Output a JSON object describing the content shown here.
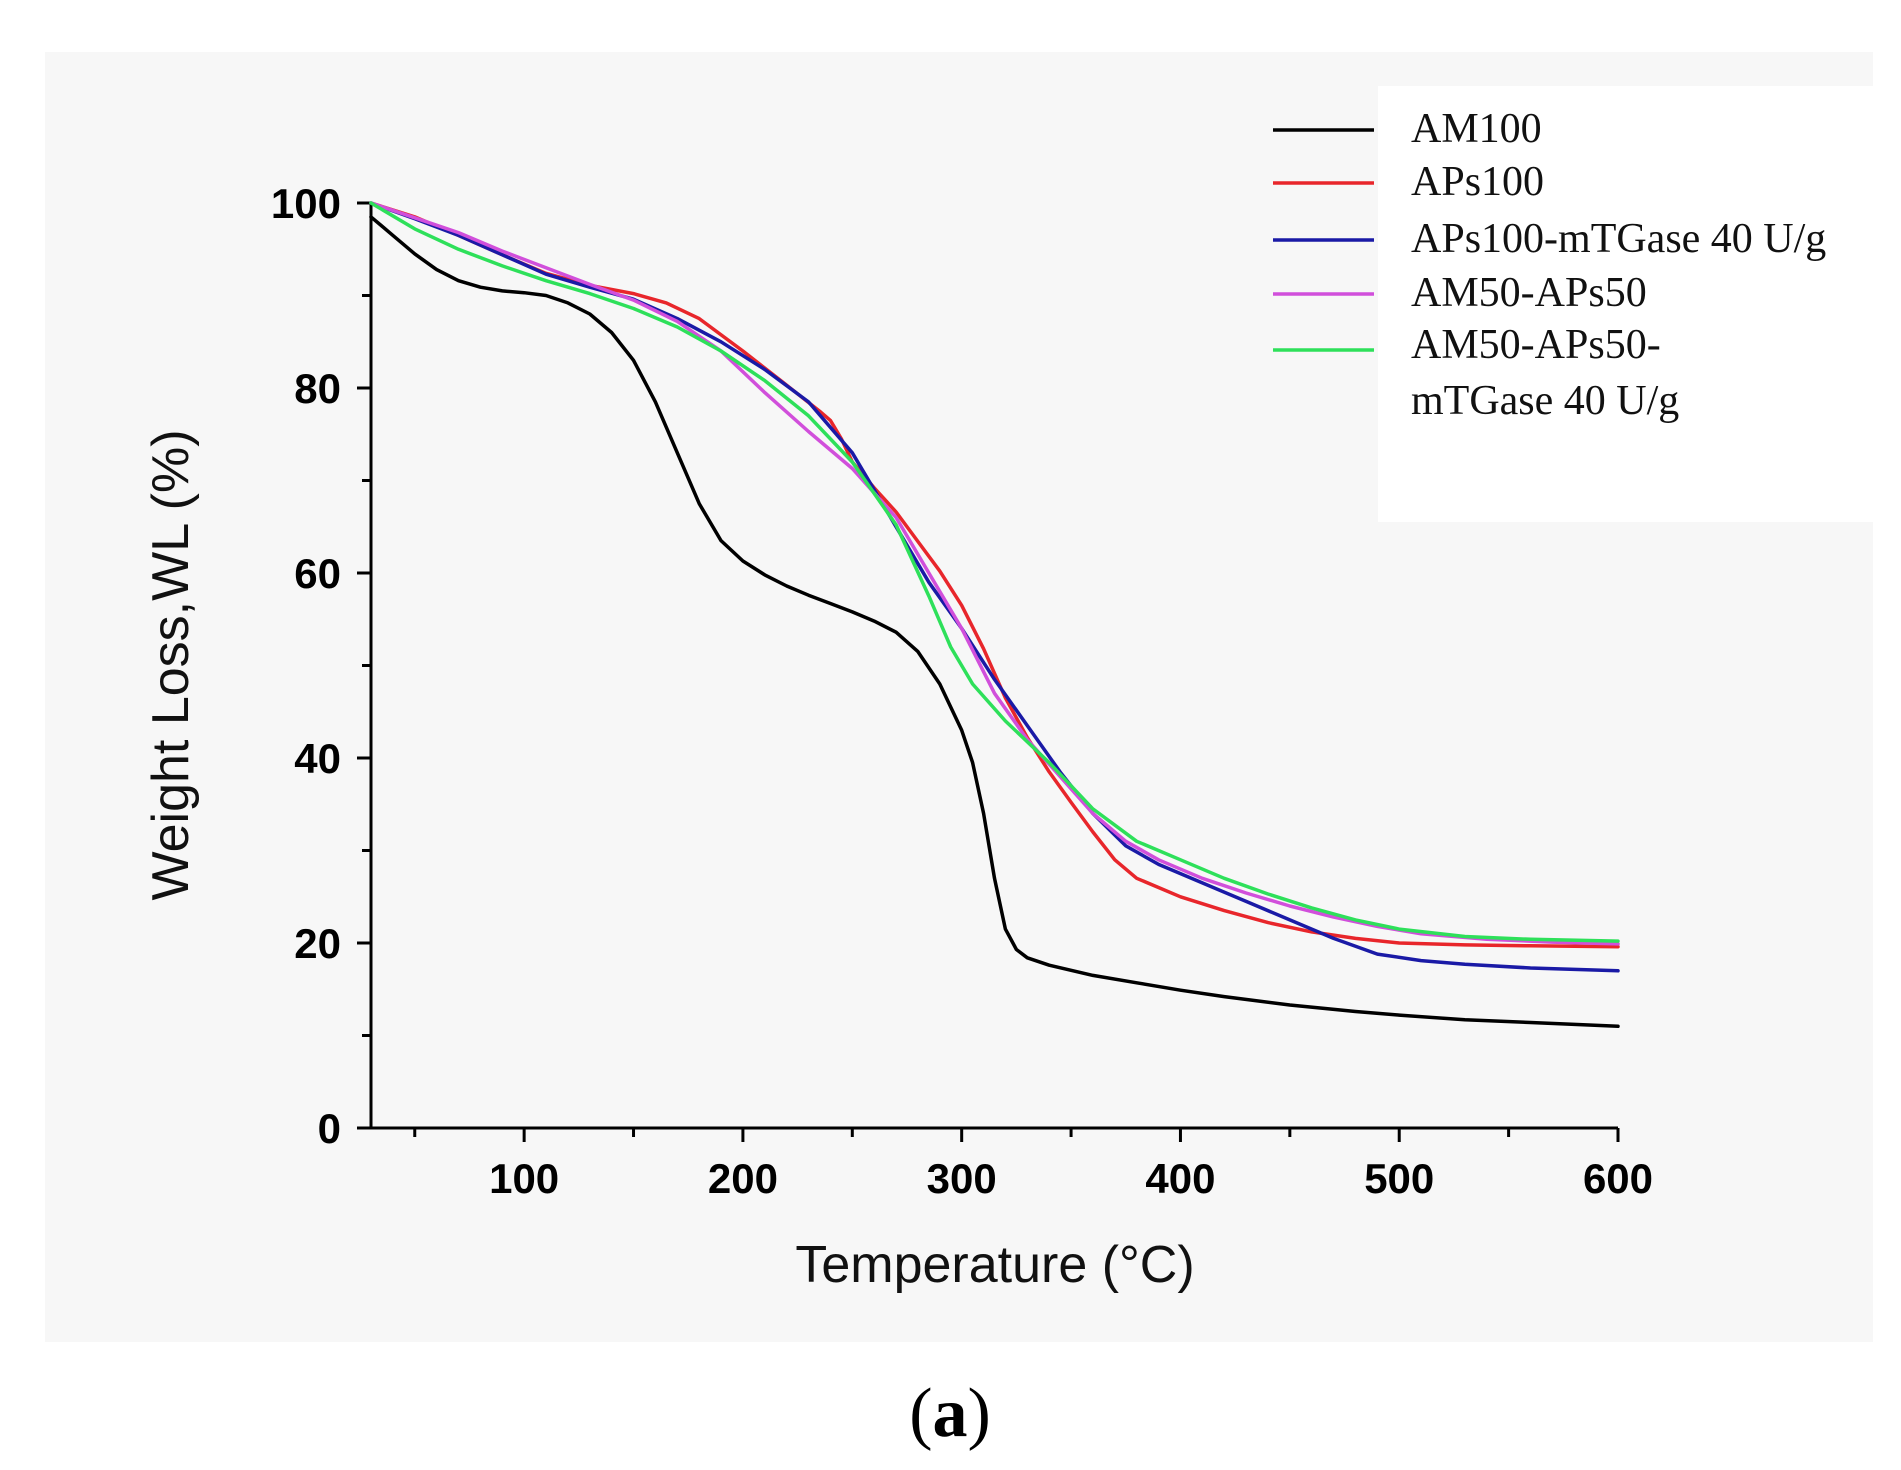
{
  "chart_data": {
    "type": "line",
    "title": "",
    "xlabel": "Temperature (°C)",
    "ylabel": "Weight Loss,WL (%)",
    "xlim": [
      30,
      600
    ],
    "ylim": [
      0,
      105
    ],
    "xticks": [
      100,
      200,
      300,
      400,
      500,
      600
    ],
    "xticks_minor": [
      50,
      150,
      250,
      350,
      450,
      550
    ],
    "yticks": [
      0,
      20,
      40,
      60,
      80,
      100
    ],
    "yticks_minor": [
      10,
      30,
      50,
      70,
      90
    ],
    "legend_position": "top-right",
    "series": [
      {
        "name": "AM100",
        "color": "#000000",
        "points": [
          [
            30,
            98.5
          ],
          [
            40,
            96.5
          ],
          [
            50,
            94.5
          ],
          [
            60,
            92.8
          ],
          [
            70,
            91.6
          ],
          [
            80,
            90.9
          ],
          [
            90,
            90.5
          ],
          [
            100,
            90.3
          ],
          [
            110,
            90
          ],
          [
            120,
            89.2
          ],
          [
            130,
            88
          ],
          [
            140,
            86
          ],
          [
            150,
            83
          ],
          [
            160,
            78.5
          ],
          [
            170,
            73
          ],
          [
            180,
            67.5
          ],
          [
            190,
            63.5
          ],
          [
            200,
            61.3
          ],
          [
            210,
            59.8
          ],
          [
            220,
            58.6
          ],
          [
            230,
            57.6
          ],
          [
            240,
            56.7
          ],
          [
            250,
            55.8
          ],
          [
            260,
            54.8
          ],
          [
            270,
            53.6
          ],
          [
            280,
            51.5
          ],
          [
            290,
            48
          ],
          [
            300,
            43
          ],
          [
            305,
            39.5
          ],
          [
            310,
            34
          ],
          [
            315,
            27
          ],
          [
            320,
            21.5
          ],
          [
            325,
            19.3
          ],
          [
            330,
            18.4
          ],
          [
            340,
            17.6
          ],
          [
            360,
            16.5
          ],
          [
            380,
            15.7
          ],
          [
            400,
            14.9
          ],
          [
            420,
            14.2
          ],
          [
            450,
            13.3
          ],
          [
            480,
            12.6
          ],
          [
            500,
            12.2
          ],
          [
            530,
            11.7
          ],
          [
            560,
            11.4
          ],
          [
            600,
            11
          ]
        ]
      },
      {
        "name": "APs100",
        "color": "#e8262b",
        "points": [
          [
            30,
            100
          ],
          [
            50,
            98.5
          ],
          [
            70,
            96.5
          ],
          [
            90,
            94.4
          ],
          [
            110,
            92.4
          ],
          [
            130,
            91.1
          ],
          [
            150,
            90.2
          ],
          [
            165,
            89.2
          ],
          [
            180,
            87.5
          ],
          [
            200,
            84
          ],
          [
            220,
            80.3
          ],
          [
            235,
            77.5
          ],
          [
            240,
            76.5
          ],
          [
            245,
            74.5
          ],
          [
            250,
            72
          ],
          [
            260,
            69.2
          ],
          [
            270,
            66.6
          ],
          [
            280,
            63.4
          ],
          [
            290,
            60.2
          ],
          [
            300,
            56.5
          ],
          [
            310,
            51.8
          ],
          [
            320,
            46.5
          ],
          [
            330,
            42.2
          ],
          [
            340,
            38.5
          ],
          [
            350,
            35.2
          ],
          [
            360,
            32
          ],
          [
            370,
            29
          ],
          [
            380,
            27
          ],
          [
            400,
            25
          ],
          [
            420,
            23.5
          ],
          [
            440,
            22.2
          ],
          [
            460,
            21.2
          ],
          [
            480,
            20.5
          ],
          [
            500,
            20
          ],
          [
            530,
            19.8
          ],
          [
            560,
            19.7
          ],
          [
            600,
            19.6
          ]
        ]
      },
      {
        "name": "APs100-mTGase 40 U/g",
        "color": "#1a1aa6",
        "points": [
          [
            30,
            100
          ],
          [
            50,
            98.3
          ],
          [
            70,
            96.5
          ],
          [
            90,
            94.4
          ],
          [
            110,
            92.3
          ],
          [
            130,
            90.9
          ],
          [
            150,
            89.6
          ],
          [
            170,
            87.5
          ],
          [
            190,
            85
          ],
          [
            210,
            82
          ],
          [
            230,
            78.5
          ],
          [
            250,
            73
          ],
          [
            270,
            65
          ],
          [
            285,
            59
          ],
          [
            300,
            54
          ],
          [
            315,
            48.5
          ],
          [
            330,
            43.5
          ],
          [
            345,
            38.5
          ],
          [
            360,
            34
          ],
          [
            375,
            30.5
          ],
          [
            390,
            28.5
          ],
          [
            410,
            26.5
          ],
          [
            430,
            24.5
          ],
          [
            450,
            22.5
          ],
          [
            470,
            20.5
          ],
          [
            490,
            18.8
          ],
          [
            510,
            18.1
          ],
          [
            530,
            17.7
          ],
          [
            560,
            17.3
          ],
          [
            600,
            17
          ]
        ]
      },
      {
        "name": "AM50-APs50",
        "color": "#d14fdb",
        "points": [
          [
            30,
            100
          ],
          [
            50,
            98.4
          ],
          [
            70,
            96.8
          ],
          [
            90,
            94.8
          ],
          [
            110,
            93
          ],
          [
            130,
            91.2
          ],
          [
            150,
            89.5
          ],
          [
            170,
            87.2
          ],
          [
            190,
            84
          ],
          [
            210,
            79.5
          ],
          [
            230,
            75.3
          ],
          [
            250,
            71.3
          ],
          [
            270,
            66
          ],
          [
            290,
            58
          ],
          [
            300,
            54
          ],
          [
            315,
            47
          ],
          [
            330,
            42
          ],
          [
            345,
            38
          ],
          [
            360,
            34
          ],
          [
            375,
            31
          ],
          [
            390,
            29
          ],
          [
            410,
            27
          ],
          [
            430,
            25.4
          ],
          [
            450,
            24
          ],
          [
            470,
            22.8
          ],
          [
            490,
            21.8
          ],
          [
            510,
            21
          ],
          [
            540,
            20.4
          ],
          [
            570,
            20.1
          ],
          [
            600,
            19.9
          ]
        ]
      },
      {
        "name": "AM50-APs50-mTGase 40 U/g",
        "color": "#2ee05a",
        "points": [
          [
            30,
            100
          ],
          [
            50,
            97.2
          ],
          [
            70,
            95
          ],
          [
            90,
            93.2
          ],
          [
            110,
            91.6
          ],
          [
            130,
            90.2
          ],
          [
            150,
            88.6
          ],
          [
            170,
            86.6
          ],
          [
            190,
            84
          ],
          [
            210,
            80.8
          ],
          [
            230,
            77
          ],
          [
            250,
            72
          ],
          [
            270,
            65.2
          ],
          [
            285,
            57.5
          ],
          [
            295,
            52
          ],
          [
            305,
            48
          ],
          [
            320,
            44
          ],
          [
            340,
            39.5
          ],
          [
            360,
            34.5
          ],
          [
            380,
            31
          ],
          [
            400,
            29
          ],
          [
            420,
            27
          ],
          [
            440,
            25.3
          ],
          [
            460,
            23.8
          ],
          [
            480,
            22.5
          ],
          [
            500,
            21.5
          ],
          [
            530,
            20.7
          ],
          [
            560,
            20.4
          ],
          [
            600,
            20.2
          ]
        ]
      }
    ]
  },
  "legend": {
    "items": [
      {
        "label": "AM100"
      },
      {
        "label": "APs100"
      },
      {
        "label": "APs100-mTGase 40 U/g"
      },
      {
        "label": "AM50-APs50"
      },
      {
        "label_line1": "AM50-APs50-",
        "label_line2": "mTGase 40 U/g"
      }
    ]
  },
  "caption": {
    "open": "(",
    "letter": "a",
    "close": ")"
  }
}
